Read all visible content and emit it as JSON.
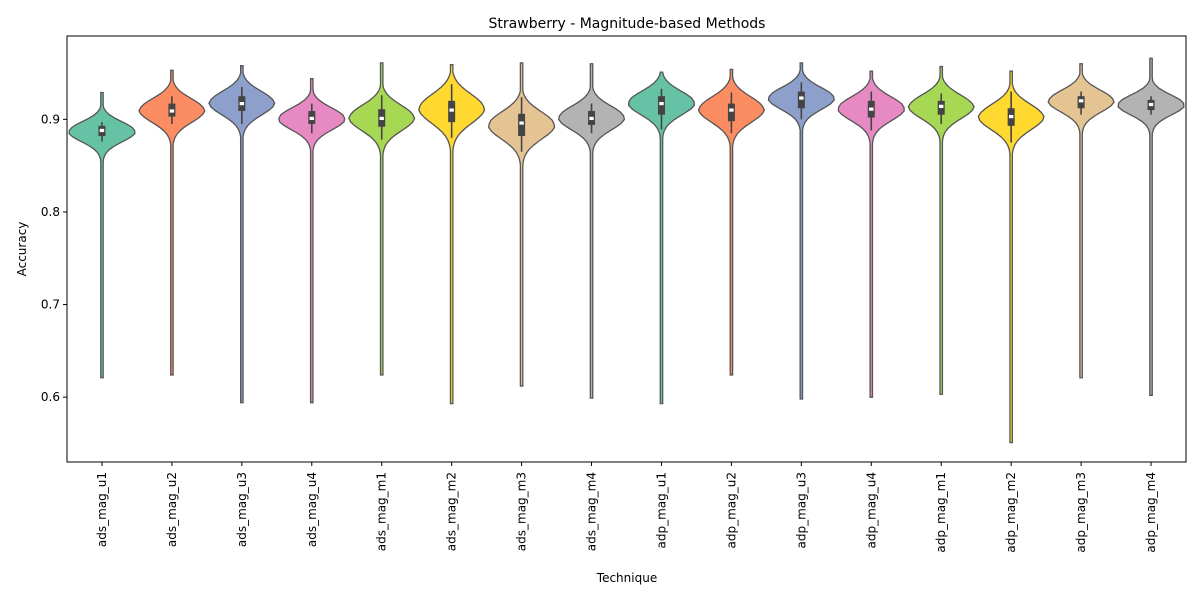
{
  "chart_data": {
    "type": "violin",
    "title": "Strawberry - Magnitude-based Methods",
    "xlabel": "Technique",
    "ylabel": "Accuracy",
    "ylim": [
      0.53,
      0.99
    ],
    "yticks": [
      0.6,
      0.7,
      0.8,
      0.9
    ],
    "ytick_labels": [
      "0.6",
      "0.7",
      "0.8",
      "0.9"
    ],
    "grid": false,
    "legend": "none",
    "categories": [
      "ads_mag_u1",
      "ads_mag_u2",
      "ads_mag_u3",
      "ads_mag_u4",
      "ads_mag_m1",
      "ads_mag_m2",
      "ads_mag_m3",
      "ads_mag_m4",
      "adp_mag_u1",
      "adp_mag_u2",
      "adp_mag_u3",
      "adp_mag_u4",
      "adp_mag_m1",
      "adp_mag_m2",
      "adp_mag_m3",
      "adp_mag_m4"
    ],
    "colors": [
      "#66c2a5",
      "#fc8d62",
      "#8da0cb",
      "#e78ac3",
      "#a6d854",
      "#ffd92f",
      "#e5c494",
      "#b3b3b3",
      "#66c2a5",
      "#fc8d62",
      "#8da0cb",
      "#e78ac3",
      "#a6d854",
      "#ffd92f",
      "#e5c494",
      "#b3b3b3"
    ],
    "violins": [
      {
        "min": 0.621,
        "max": 0.929,
        "mode": 0.887,
        "spread": 0.011,
        "q1": 0.882,
        "median": 0.888,
        "q3": 0.893,
        "wlo": 0.876,
        "whi": 0.897
      },
      {
        "min": 0.624,
        "max": 0.953,
        "mode": 0.91,
        "spread": 0.013,
        "q1": 0.903,
        "median": 0.909,
        "q3": 0.917,
        "wlo": 0.895,
        "whi": 0.925
      },
      {
        "min": 0.594,
        "max": 0.958,
        "mode": 0.918,
        "spread": 0.013,
        "q1": 0.909,
        "median": 0.917,
        "q3": 0.925,
        "wlo": 0.895,
        "whi": 0.935
      },
      {
        "min": 0.594,
        "max": 0.944,
        "mode": 0.901,
        "spread": 0.012,
        "q1": 0.895,
        "median": 0.901,
        "q3": 0.909,
        "wlo": 0.885,
        "whi": 0.917
      },
      {
        "min": 0.624,
        "max": 0.961,
        "mode": 0.902,
        "spread": 0.014,
        "q1": 0.892,
        "median": 0.901,
        "q3": 0.911,
        "wlo": 0.878,
        "whi": 0.926
      },
      {
        "min": 0.593,
        "max": 0.959,
        "mode": 0.912,
        "spread": 0.016,
        "q1": 0.897,
        "median": 0.91,
        "q3": 0.92,
        "wlo": 0.88,
        "whi": 0.938
      },
      {
        "min": 0.612,
        "max": 0.961,
        "mode": 0.894,
        "spread": 0.015,
        "q1": 0.882,
        "median": 0.896,
        "q3": 0.906,
        "wlo": 0.865,
        "whi": 0.924
      },
      {
        "min": 0.599,
        "max": 0.96,
        "mode": 0.902,
        "spread": 0.013,
        "q1": 0.894,
        "median": 0.901,
        "q3": 0.909,
        "wlo": 0.885,
        "whi": 0.917
      },
      {
        "min": 0.593,
        "max": 0.951,
        "mode": 0.918,
        "spread": 0.013,
        "q1": 0.905,
        "median": 0.917,
        "q3": 0.925,
        "wlo": 0.889,
        "whi": 0.933
      },
      {
        "min": 0.624,
        "max": 0.954,
        "mode": 0.911,
        "spread": 0.014,
        "q1": 0.898,
        "median": 0.91,
        "q3": 0.917,
        "wlo": 0.885,
        "whi": 0.929
      },
      {
        "min": 0.598,
        "max": 0.961,
        "mode": 0.923,
        "spread": 0.012,
        "q1": 0.912,
        "median": 0.923,
        "q3": 0.93,
        "wlo": 0.9,
        "whi": 0.94
      },
      {
        "min": 0.6,
        "max": 0.952,
        "mode": 0.912,
        "spread": 0.013,
        "q1": 0.902,
        "median": 0.911,
        "q3": 0.92,
        "wlo": 0.888,
        "whi": 0.93
      },
      {
        "min": 0.603,
        "max": 0.957,
        "mode": 0.914,
        "spread": 0.013,
        "q1": 0.905,
        "median": 0.914,
        "q3": 0.92,
        "wlo": 0.895,
        "whi": 0.928
      },
      {
        "min": 0.551,
        "max": 0.952,
        "mode": 0.903,
        "spread": 0.014,
        "q1": 0.893,
        "median": 0.903,
        "q3": 0.912,
        "wlo": 0.875,
        "whi": 0.93
      },
      {
        "min": 0.621,
        "max": 0.96,
        "mode": 0.92,
        "spread": 0.012,
        "q1": 0.912,
        "median": 0.92,
        "q3": 0.925,
        "wlo": 0.905,
        "whi": 0.93
      },
      {
        "min": 0.602,
        "max": 0.966,
        "mode": 0.916,
        "spread": 0.011,
        "q1": 0.91,
        "median": 0.916,
        "q3": 0.921,
        "wlo": 0.905,
        "whi": 0.925
      }
    ]
  }
}
